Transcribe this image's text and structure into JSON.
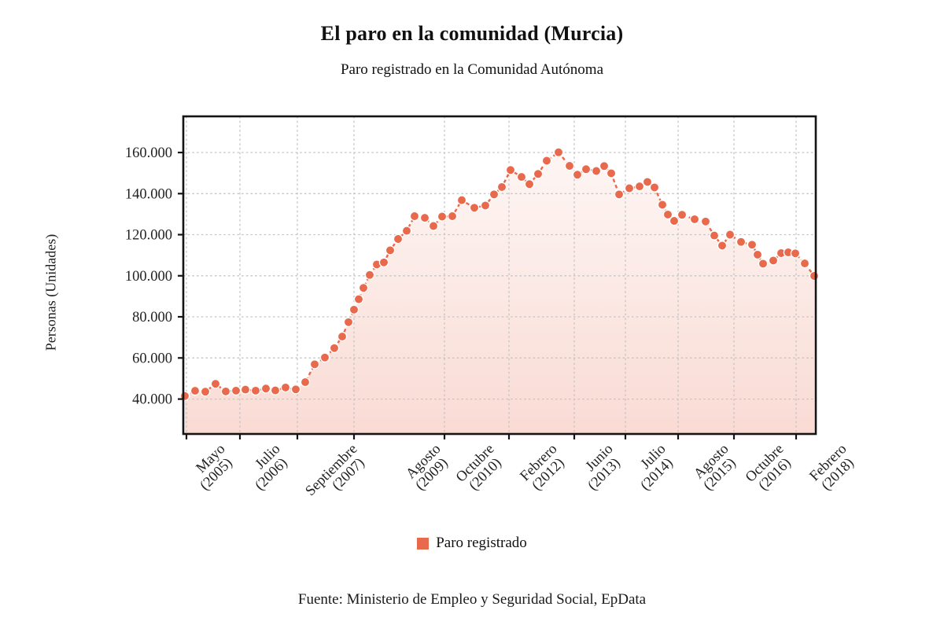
{
  "figure": {
    "title": "El paro en la comunidad (Murcia)",
    "subtitle": "Paro registrado en la Comunidad Autónoma",
    "y_axis_title": "Personas (Unidades)",
    "source": "Fuente: Ministerio de Empleo y Seguridad Social, EpData"
  },
  "legend": {
    "label": "Paro registrado"
  },
  "colors": {
    "accent": "#e8694c",
    "grid": "#c4c4c4",
    "frame": "#141414",
    "text": "#222222"
  },
  "chart_data": {
    "type": "line",
    "title": "El paro en la comunidad (Murcia)",
    "subtitle": "Paro registrado en la Comunidad Autónoma",
    "ylabel": "Personas (Unidades)",
    "series_name": "Paro registrado",
    "line_style": "dashed",
    "marker": "circle",
    "grid": true,
    "legend_position": "bottom",
    "ylim": [
      23000,
      177600
    ],
    "y_ticks": [
      40000,
      60000,
      80000,
      100000,
      120000,
      140000,
      160000
    ],
    "y_tick_labels": [
      "40.000",
      "60.000",
      "80.000",
      "100.000",
      "120.000",
      "140.000",
      "160.000"
    ],
    "x_ticks": [
      {
        "month": "Mayo",
        "year": "(2005)",
        "x": 237,
        "lx": 277
      },
      {
        "month": "Julio",
        "year": "(2006)",
        "x": 305,
        "lx": 347
      },
      {
        "month": "Septiembre",
        "year": "(2007)",
        "x": 378,
        "lx": 445
      },
      {
        "month": "Agosto",
        "year": "(2009)",
        "x": 450,
        "lx": 551
      },
      {
        "month": "Octubre",
        "year": "(2010)",
        "x": 565,
        "lx": 619
      },
      {
        "month": "Febrero",
        "year": "(2012)",
        "x": 647,
        "lx": 699
      },
      {
        "month": "Junio",
        "year": "(2013)",
        "x": 730,
        "lx": 770
      },
      {
        "month": "Julio",
        "year": "(2014)",
        "x": 795,
        "lx": 837
      },
      {
        "month": "Agosto",
        "year": "(2015)",
        "x": 862,
        "lx": 917
      },
      {
        "month": "Octubre",
        "year": "(2016)",
        "x": 933,
        "lx": 987
      },
      {
        "month": "Febrero",
        "year": "(2018)",
        "x": 1012,
        "lx": 1067
      }
    ],
    "points": [
      {
        "x": 235,
        "v": 41500
      },
      {
        "x": 248,
        "v": 44000
      },
      {
        "x": 261,
        "v": 43600
      },
      {
        "x": 274,
        "v": 47400
      },
      {
        "x": 287,
        "v": 43700
      },
      {
        "x": 300,
        "v": 44100
      },
      {
        "x": 312,
        "v": 44600
      },
      {
        "x": 325,
        "v": 44100
      },
      {
        "x": 338,
        "v": 45100
      },
      {
        "x": 350,
        "v": 44200
      },
      {
        "x": 363,
        "v": 45600
      },
      {
        "x": 376,
        "v": 44700
      },
      {
        "x": 388,
        "v": 48200
      },
      {
        "x": 400,
        "v": 56900
      },
      {
        "x": 413,
        "v": 60200
      },
      {
        "x": 425,
        "v": 64800
      },
      {
        "x": 435,
        "v": 70400
      },
      {
        "x": 443,
        "v": 77400
      },
      {
        "x": 450,
        "v": 83500
      },
      {
        "x": 456,
        "v": 88600
      },
      {
        "x": 462,
        "v": 94100
      },
      {
        "x": 470,
        "v": 100400
      },
      {
        "x": 479,
        "v": 105500
      },
      {
        "x": 488,
        "v": 106500
      },
      {
        "x": 496,
        "v": 112400
      },
      {
        "x": 506,
        "v": 117900
      },
      {
        "x": 517,
        "v": 121900
      },
      {
        "x": 527,
        "v": 129000
      },
      {
        "x": 540,
        "v": 128200
      },
      {
        "x": 551,
        "v": 124200
      },
      {
        "x": 562,
        "v": 128800
      },
      {
        "x": 575,
        "v": 129000
      },
      {
        "x": 587,
        "v": 136800
      },
      {
        "x": 603,
        "v": 133100
      },
      {
        "x": 617,
        "v": 134200
      },
      {
        "x": 628,
        "v": 139600
      },
      {
        "x": 638,
        "v": 143200
      },
      {
        "x": 649,
        "v": 151500
      },
      {
        "x": 663,
        "v": 148100
      },
      {
        "x": 673,
        "v": 144600
      },
      {
        "x": 684,
        "v": 149600
      },
      {
        "x": 695,
        "v": 156000
      },
      {
        "x": 710,
        "v": 160100
      },
      {
        "x": 724,
        "v": 153500
      },
      {
        "x": 734,
        "v": 149200
      },
      {
        "x": 745,
        "v": 151900
      },
      {
        "x": 758,
        "v": 151000
      },
      {
        "x": 768,
        "v": 153400
      },
      {
        "x": 777,
        "v": 149900
      },
      {
        "x": 787,
        "v": 139600
      },
      {
        "x": 800,
        "v": 142600
      },
      {
        "x": 813,
        "v": 143500
      },
      {
        "x": 823,
        "v": 145700
      },
      {
        "x": 832,
        "v": 143000
      },
      {
        "x": 842,
        "v": 134600
      },
      {
        "x": 849,
        "v": 129800
      },
      {
        "x": 857,
        "v": 126700
      },
      {
        "x": 867,
        "v": 129700
      },
      {
        "x": 883,
        "v": 127500
      },
      {
        "x": 897,
        "v": 126400
      },
      {
        "x": 908,
        "v": 119600
      },
      {
        "x": 918,
        "v": 114700
      },
      {
        "x": 928,
        "v": 120000
      },
      {
        "x": 942,
        "v": 116500
      },
      {
        "x": 956,
        "v": 115100
      },
      {
        "x": 963,
        "v": 110300
      },
      {
        "x": 970,
        "v": 105900
      },
      {
        "x": 983,
        "v": 107400
      },
      {
        "x": 993,
        "v": 111000
      },
      {
        "x": 1002,
        "v": 111400
      },
      {
        "x": 1011,
        "v": 110900
      },
      {
        "x": 1023,
        "v": 106000
      },
      {
        "x": 1035,
        "v": 99900
      }
    ]
  }
}
